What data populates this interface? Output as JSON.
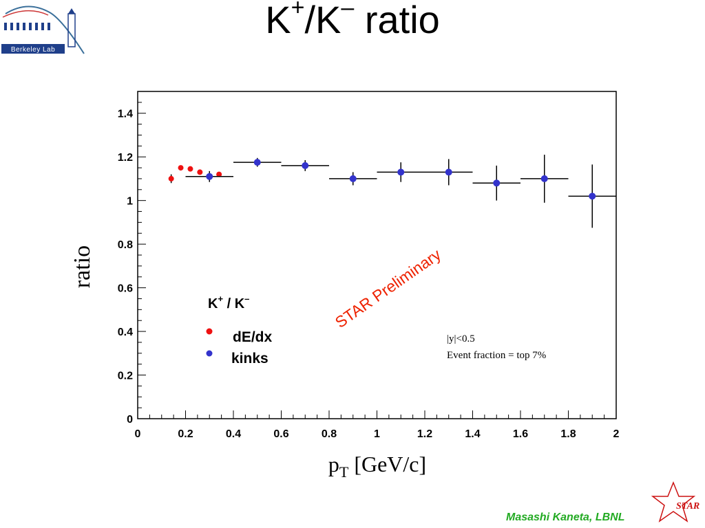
{
  "slide": {
    "title_base": "K",
    "title_sup1": "+",
    "title_mid": "/K",
    "title_sup2": "–",
    "title_tail": " ratio",
    "logo_text": "Berkeley Lab",
    "footer": "Masashi Kaneta, LBNL",
    "star_logo_text": "STAR"
  },
  "chart_data": {
    "type": "scatter",
    "title": "",
    "xlabel_main": "p",
    "xlabel_sub": "T",
    "xlabel_rest": " [GeV/c]",
    "ylabel": "ratio",
    "xlim": [
      0,
      2
    ],
    "ylim": [
      0,
      1.5
    ],
    "x_tick_labels": [
      "0",
      "0.2",
      "0.4",
      "0.6",
      "0.8",
      "1",
      "1.2",
      "1.4",
      "1.6",
      "1.8",
      "2"
    ],
    "y_tick_labels": [
      "0",
      "0.2",
      "0.4",
      "0.6",
      "0.8",
      "1",
      "1.2",
      "1.4"
    ],
    "x_ticks": [
      0,
      0.2,
      0.4,
      0.6,
      0.8,
      1.0,
      1.2,
      1.4,
      1.6,
      1.8,
      2.0
    ],
    "y_ticks": [
      0,
      0.2,
      0.4,
      0.6,
      0.8,
      1.0,
      1.2,
      1.4
    ],
    "grid": false,
    "legend": {
      "title_base": "K",
      "title_sup1": "+",
      "title_mid": " / K",
      "title_sup2": "–",
      "position": "lower-left"
    },
    "series": [
      {
        "name": "dE/dx",
        "color": "#ee1111",
        "points": [
          {
            "x": 0.14,
            "y": 1.1,
            "yerr": 0.02,
            "xerr": 0.01
          },
          {
            "x": 0.18,
            "y": 1.15,
            "yerr": 0.01,
            "xerr": 0.01
          },
          {
            "x": 0.22,
            "y": 1.145,
            "yerr": 0.01,
            "xerr": 0.01
          },
          {
            "x": 0.26,
            "y": 1.13,
            "yerr": 0.01,
            "xerr": 0.01
          },
          {
            "x": 0.34,
            "y": 1.12,
            "yerr": 0.01,
            "xerr": 0.01
          }
        ]
      },
      {
        "name": "kinks",
        "color": "#3333cc",
        "points": [
          {
            "x": 0.3,
            "y": 1.11,
            "yerr": 0.025,
            "xerr": 0.1
          },
          {
            "x": 0.5,
            "y": 1.175,
            "yerr": 0.02,
            "xerr": 0.1
          },
          {
            "x": 0.7,
            "y": 1.16,
            "yerr": 0.025,
            "xerr": 0.1
          },
          {
            "x": 0.9,
            "y": 1.1,
            "yerr": 0.03,
            "xerr": 0.1
          },
          {
            "x": 1.1,
            "y": 1.13,
            "yerr": 0.045,
            "xerr": 0.1
          },
          {
            "x": 1.3,
            "y": 1.13,
            "yerr": 0.06,
            "xerr": 0.1
          },
          {
            "x": 1.5,
            "y": 1.08,
            "yerr": 0.08,
            "xerr": 0.1
          },
          {
            "x": 1.7,
            "y": 1.1,
            "yerr": 0.11,
            "xerr": 0.1
          },
          {
            "x": 1.9,
            "y": 1.02,
            "yerr": 0.145,
            "xerr": 0.1
          }
        ]
      }
    ],
    "annotations": {
      "watermark": "STAR Preliminary",
      "watermark_color": "#ee2200",
      "cut_line1": "|y|<0.5",
      "cut_line2": "Event fraction = top 7%"
    }
  }
}
